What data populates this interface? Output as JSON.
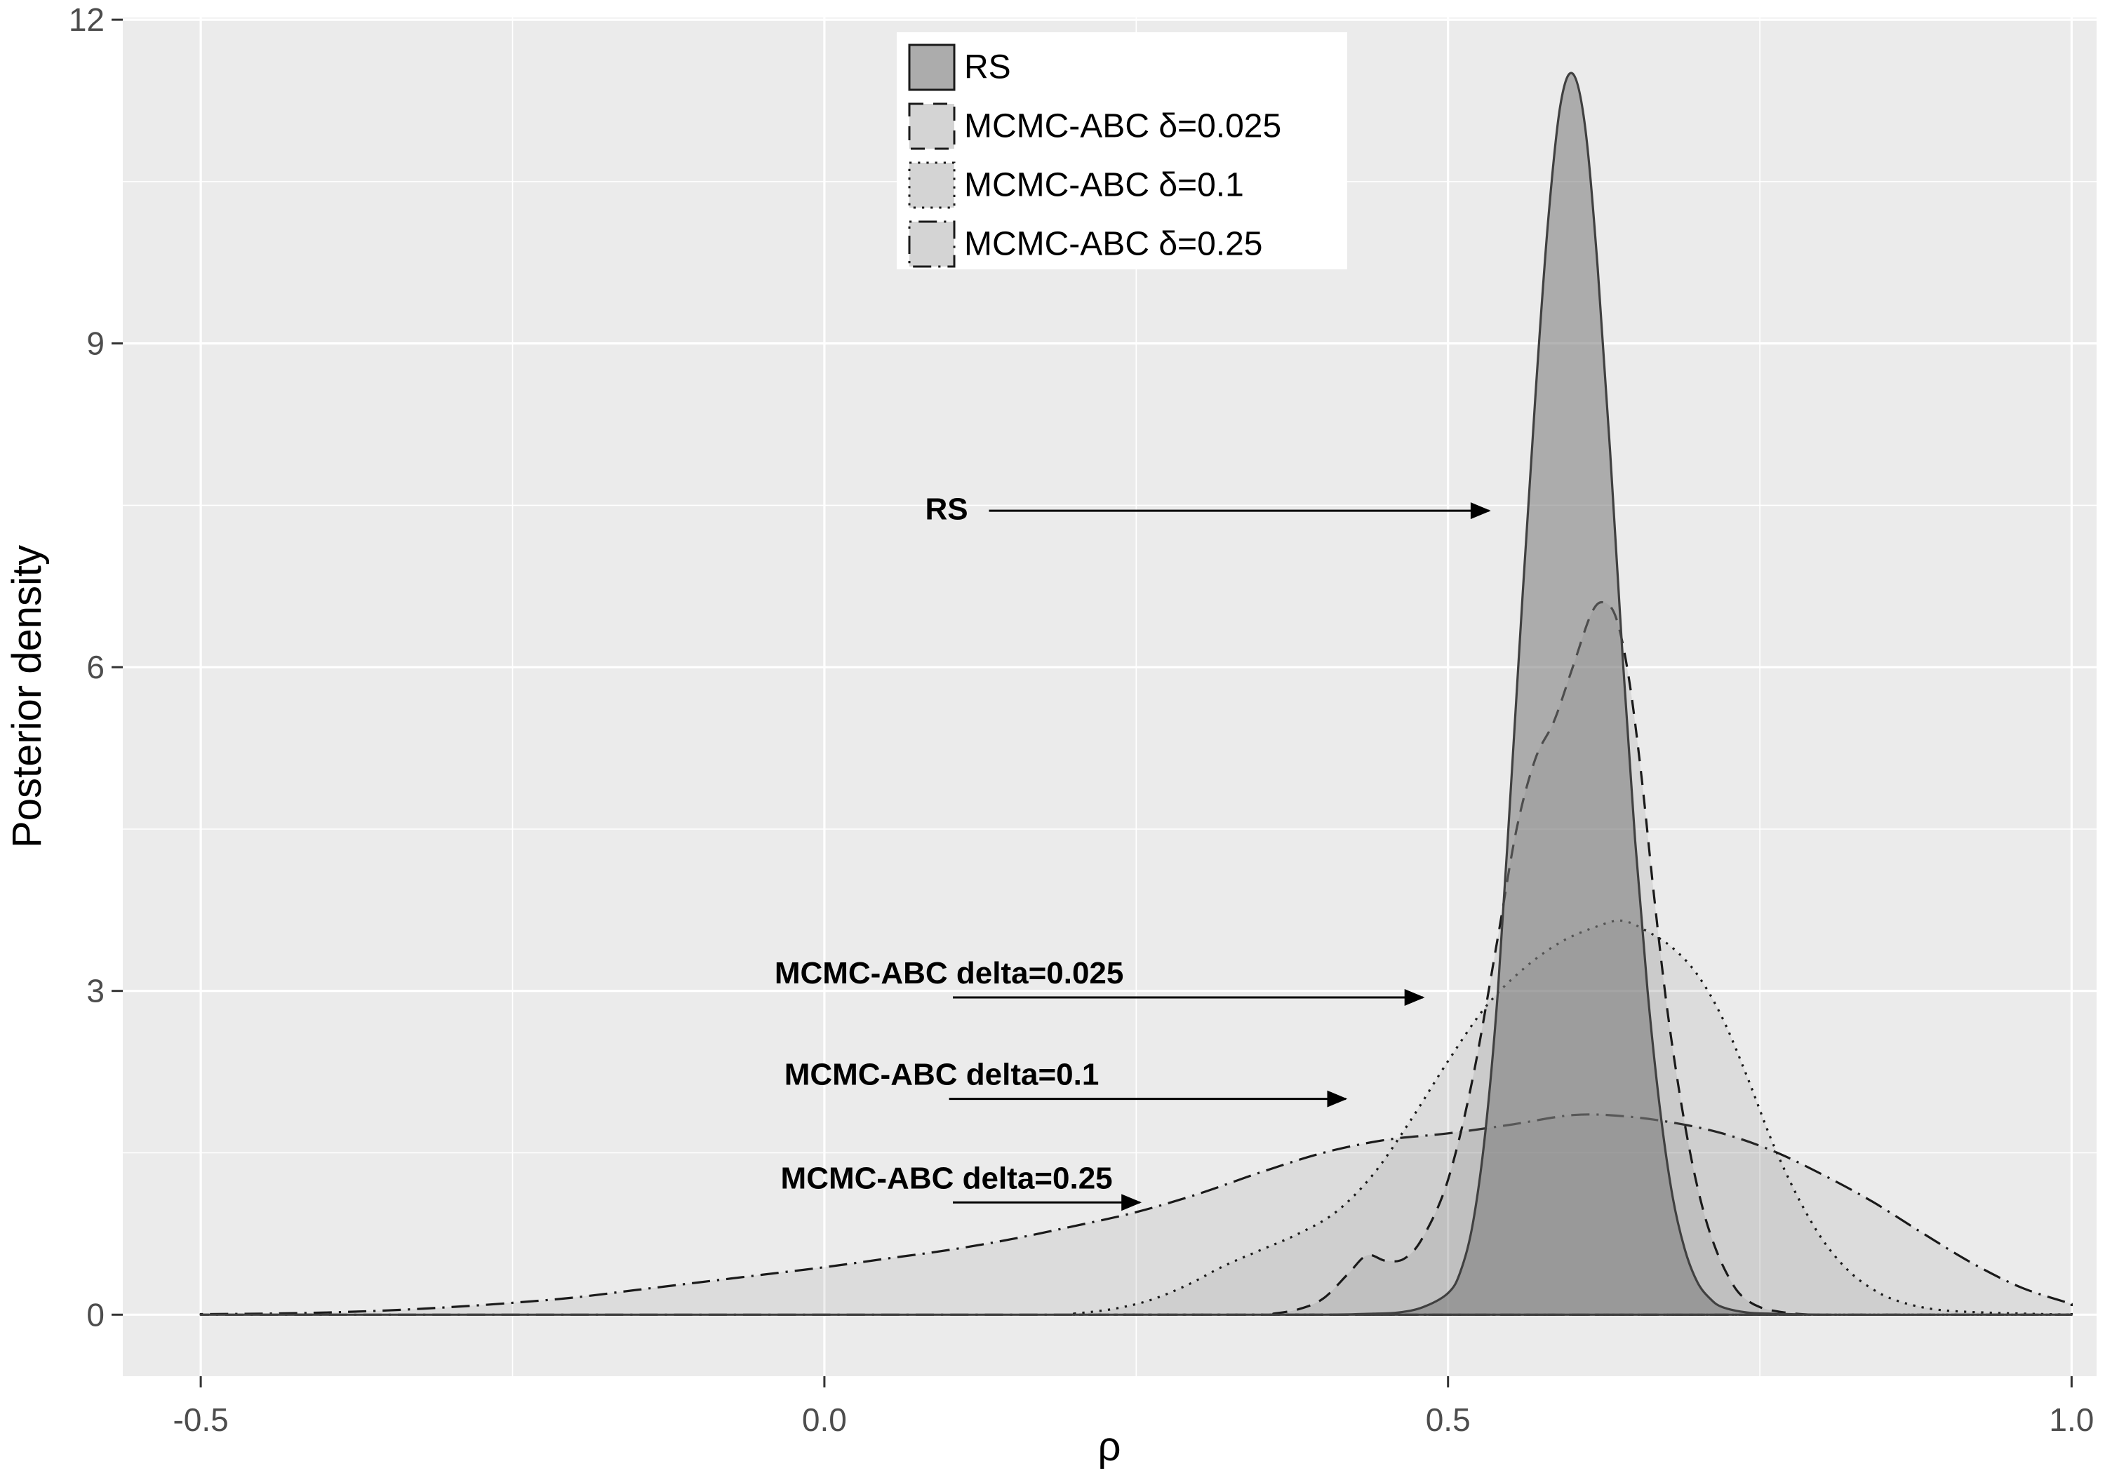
{
  "page": {
    "background": "#FFFFFF"
  },
  "chart_data": {
    "type": "area",
    "title": "",
    "xlabel": "ρ",
    "ylabel": "Posterior density",
    "xlim": [
      -0.5625,
      1.02
    ],
    "ylim": [
      -0.57,
      12.02
    ],
    "grid": true,
    "legend_position": "top-center-inside",
    "panel": {
      "bg": "#EBEBEB",
      "grid_major": "#FFFFFF",
      "grid_minor": "#FFFFFF",
      "tick_color": "#333333"
    },
    "x_ticks": {
      "major": [
        -0.5,
        0.0,
        0.5,
        1.0
      ],
      "labels": [
        "-0.5",
        "0.0",
        "0.5",
        "1.0"
      ],
      "minor": [
        -0.25,
        0.25,
        0.75
      ]
    },
    "y_ticks": {
      "major": [
        0,
        3,
        6,
        9,
        12
      ],
      "labels": [
        "0",
        "3",
        "6",
        "9",
        "12"
      ],
      "minor": [
        1.5,
        4.5,
        7.5,
        10.5
      ]
    },
    "series": [
      {
        "id": "mcmc-abc-025",
        "name": "MCMC-ABC δ=0.25",
        "linetype": "dotdash",
        "stroke": "#1A1A1A",
        "fill": "rgba(120,120,120,0.13)",
        "points": [
          [
            -0.5,
            0.005
          ],
          [
            -0.45,
            0.01
          ],
          [
            -0.4,
            0.02
          ],
          [
            -0.35,
            0.04
          ],
          [
            -0.3,
            0.07
          ],
          [
            -0.25,
            0.11
          ],
          [
            -0.2,
            0.16
          ],
          [
            -0.15,
            0.23
          ],
          [
            -0.1,
            0.3
          ],
          [
            -0.05,
            0.37
          ],
          [
            0.0,
            0.44
          ],
          [
            0.05,
            0.52
          ],
          [
            0.1,
            0.6
          ],
          [
            0.15,
            0.7
          ],
          [
            0.2,
            0.82
          ],
          [
            0.25,
            0.95
          ],
          [
            0.3,
            1.12
          ],
          [
            0.35,
            1.32
          ],
          [
            0.4,
            1.5
          ],
          [
            0.45,
            1.62
          ],
          [
            0.5,
            1.68
          ],
          [
            0.55,
            1.76
          ],
          [
            0.6,
            1.85
          ],
          [
            0.64,
            1.84
          ],
          [
            0.68,
            1.78
          ],
          [
            0.72,
            1.68
          ],
          [
            0.76,
            1.52
          ],
          [
            0.8,
            1.3
          ],
          [
            0.84,
            1.05
          ],
          [
            0.88,
            0.76
          ],
          [
            0.92,
            0.48
          ],
          [
            0.96,
            0.25
          ],
          [
            1.0,
            0.1
          ]
        ]
      },
      {
        "id": "mcmc-abc-01",
        "name": "MCMC-ABC δ=0.1",
        "linetype": "dotted",
        "stroke": "#1A1A1A",
        "fill": "rgba(120,120,120,0.13)",
        "points": [
          [
            0.2,
            0.01
          ],
          [
            0.23,
            0.05
          ],
          [
            0.26,
            0.13
          ],
          [
            0.29,
            0.27
          ],
          [
            0.32,
            0.45
          ],
          [
            0.35,
            0.6
          ],
          [
            0.38,
            0.75
          ],
          [
            0.41,
            0.95
          ],
          [
            0.44,
            1.3
          ],
          [
            0.47,
            1.8
          ],
          [
            0.5,
            2.35
          ],
          [
            0.53,
            2.85
          ],
          [
            0.56,
            3.2
          ],
          [
            0.59,
            3.45
          ],
          [
            0.62,
            3.6
          ],
          [
            0.64,
            3.65
          ],
          [
            0.66,
            3.55
          ],
          [
            0.68,
            3.4
          ],
          [
            0.7,
            3.15
          ],
          [
            0.72,
            2.75
          ],
          [
            0.74,
            2.2
          ],
          [
            0.76,
            1.6
          ],
          [
            0.78,
            1.1
          ],
          [
            0.8,
            0.7
          ],
          [
            0.82,
            0.42
          ],
          [
            0.84,
            0.24
          ],
          [
            0.86,
            0.13
          ],
          [
            0.89,
            0.05
          ],
          [
            0.93,
            0.02
          ],
          [
            1.0,
            0
          ]
        ]
      },
      {
        "id": "mcmc-abc-0025",
        "name": "MCMC-ABC δ=0.025",
        "linetype": "dashed",
        "stroke": "#1A1A1A",
        "fill": "rgba(120,120,120,0.16)",
        "points": [
          [
            0.36,
            0.01
          ],
          [
            0.38,
            0.05
          ],
          [
            0.4,
            0.15
          ],
          [
            0.42,
            0.38
          ],
          [
            0.435,
            0.55
          ],
          [
            0.45,
            0.5
          ],
          [
            0.465,
            0.52
          ],
          [
            0.48,
            0.72
          ],
          [
            0.5,
            1.25
          ],
          [
            0.52,
            2.2
          ],
          [
            0.54,
            3.5
          ],
          [
            0.555,
            4.5
          ],
          [
            0.57,
            5.15
          ],
          [
            0.585,
            5.5
          ],
          [
            0.6,
            6.0
          ],
          [
            0.615,
            6.5
          ],
          [
            0.625,
            6.6
          ],
          [
            0.635,
            6.45
          ],
          [
            0.645,
            5.9
          ],
          [
            0.655,
            5.0
          ],
          [
            0.665,
            3.9
          ],
          [
            0.675,
            2.9
          ],
          [
            0.685,
            2.1
          ],
          [
            0.695,
            1.45
          ],
          [
            0.705,
            0.95
          ],
          [
            0.715,
            0.6
          ],
          [
            0.725,
            0.35
          ],
          [
            0.735,
            0.18
          ],
          [
            0.75,
            0.07
          ],
          [
            0.77,
            0.02
          ],
          [
            0.79,
            0
          ]
        ]
      },
      {
        "id": "rs",
        "name": "RS",
        "linetype": "solid",
        "stroke": "#404040",
        "fill": "rgba(120,120,120,0.55)",
        "points": [
          [
            -0.5,
            0
          ],
          [
            -0.3,
            0
          ],
          [
            -0.1,
            0
          ],
          [
            0.1,
            0
          ],
          [
            0.3,
            0
          ],
          [
            0.4,
            0
          ],
          [
            0.44,
            0.01
          ],
          [
            0.46,
            0.02
          ],
          [
            0.48,
            0.07
          ],
          [
            0.5,
            0.2
          ],
          [
            0.51,
            0.4
          ],
          [
            0.52,
            0.85
          ],
          [
            0.53,
            1.7
          ],
          [
            0.54,
            3.0
          ],
          [
            0.55,
            4.8
          ],
          [
            0.56,
            6.7
          ],
          [
            0.57,
            8.5
          ],
          [
            0.58,
            10.1
          ],
          [
            0.59,
            11.2
          ],
          [
            0.6,
            11.5
          ],
          [
            0.61,
            11.0
          ],
          [
            0.62,
            9.7
          ],
          [
            0.63,
            8.0
          ],
          [
            0.64,
            6.1
          ],
          [
            0.65,
            4.4
          ],
          [
            0.66,
            3.0
          ],
          [
            0.67,
            1.9
          ],
          [
            0.68,
            1.1
          ],
          [
            0.69,
            0.6
          ],
          [
            0.7,
            0.3
          ],
          [
            0.71,
            0.15
          ],
          [
            0.72,
            0.07
          ],
          [
            0.74,
            0.02
          ],
          [
            0.76,
            0.01
          ],
          [
            0.8,
            0
          ],
          [
            0.9,
            0
          ],
          [
            1.0,
            0
          ]
        ]
      }
    ],
    "legend": {
      "items": [
        {
          "label": "RS",
          "linetype": "solid",
          "key_fill": "#ACACAC"
        },
        {
          "label": "MCMC-ABC δ=0.025",
          "linetype": "dashed",
          "key_fill": "#D4D4D4"
        },
        {
          "label": "MCMC-ABC δ=0.1",
          "linetype": "dotted",
          "key_fill": "#D4D4D4"
        },
        {
          "label": "MCMC-ABC δ=0.25",
          "linetype": "dotdash",
          "key_fill": "#D4D4D4"
        }
      ]
    },
    "annotations": [
      {
        "label": "RS",
        "text": [
          0.098,
          7.37
        ],
        "arrow": [
          0.132,
          7.45,
          0.533,
          7.45
        ]
      },
      {
        "label": "MCMC-ABC delta=0.025",
        "text": [
          0.1,
          3.07
        ],
        "arrow": [
          0.103,
          2.94,
          0.48,
          2.94
        ]
      },
      {
        "label": "MCMC-ABC delta=0.1",
        "text": [
          0.094,
          2.13
        ],
        "arrow": [
          0.1,
          2.0,
          0.418,
          2.0
        ]
      },
      {
        "label": "MCMC-ABC delta=0.25",
        "text": [
          0.098,
          1.17
        ],
        "arrow": [
          0.103,
          1.04,
          0.253,
          1.04
        ]
      }
    ]
  }
}
